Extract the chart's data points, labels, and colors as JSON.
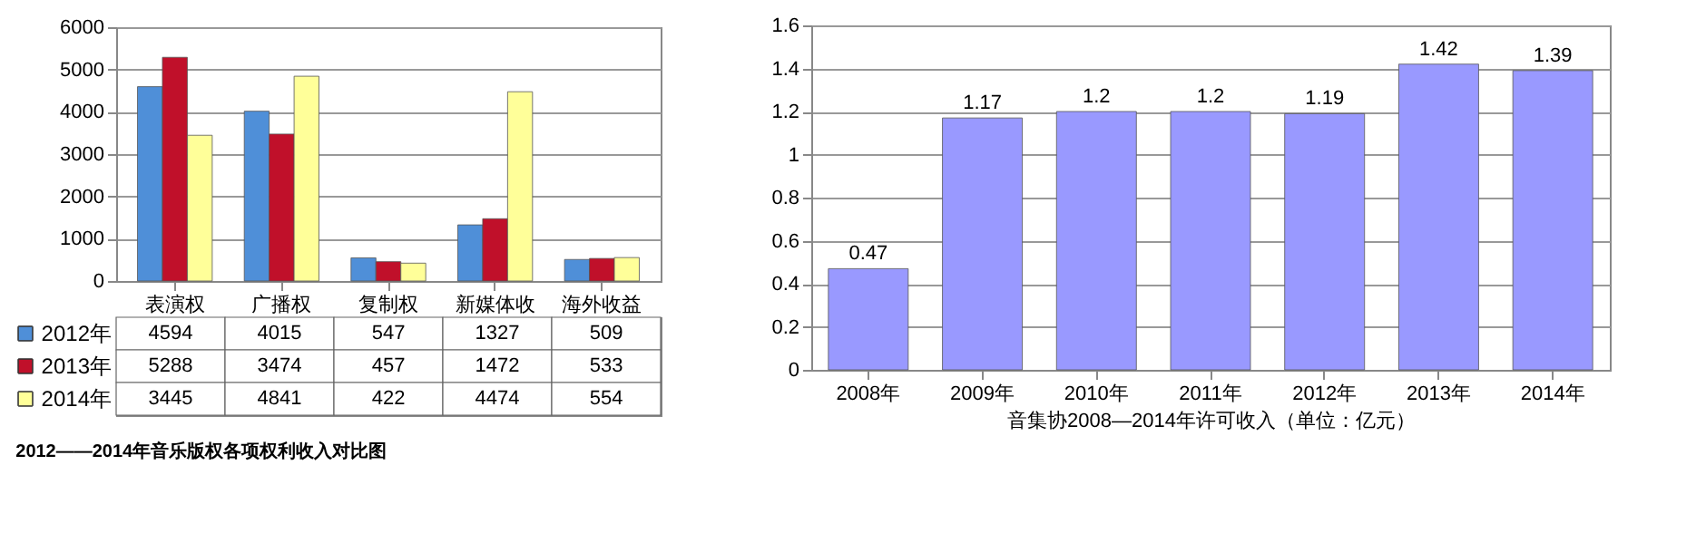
{
  "chart_data": [
    {
      "type": "bar",
      "title": "2012——2014年音乐版权各项权利收入对比图",
      "categories": [
        "表演权",
        "广播权",
        "复制权",
        "新媒体收",
        "海外收益"
      ],
      "series": [
        {
          "name": "2012年",
          "color": "#4f8fd8",
          "values": [
            4594,
            4015,
            547,
            1327,
            509
          ]
        },
        {
          "name": "2013年",
          "color": "#c0102a",
          "values": [
            5288,
            3474,
            457,
            1472,
            533
          ]
        },
        {
          "name": "2014年",
          "color": "#ffff99",
          "values": [
            3445,
            4841,
            422,
            4474,
            554
          ]
        }
      ],
      "ylim": [
        0,
        6000
      ],
      "yticks": [
        0,
        1000,
        2000,
        3000,
        4000,
        5000,
        6000
      ],
      "grid": "y",
      "legend": "bottom",
      "data_labels": true
    },
    {
      "type": "bar",
      "xlabel": "音集协2008—2014年许可收入（单位：亿元）",
      "categories": [
        "2008年",
        "2009年",
        "2010年",
        "2011年",
        "2012年",
        "2013年",
        "2014年"
      ],
      "values": [
        0.47,
        1.17,
        1.2,
        1.2,
        1.19,
        1.42,
        1.39
      ],
      "color": "#9999ff",
      "ylim": [
        0,
        1.6
      ],
      "yticks": [
        0,
        0.2,
        0.4,
        0.6,
        0.8,
        1,
        1.2,
        1.4,
        1.6
      ],
      "grid": "y",
      "data_labels": true
    }
  ]
}
